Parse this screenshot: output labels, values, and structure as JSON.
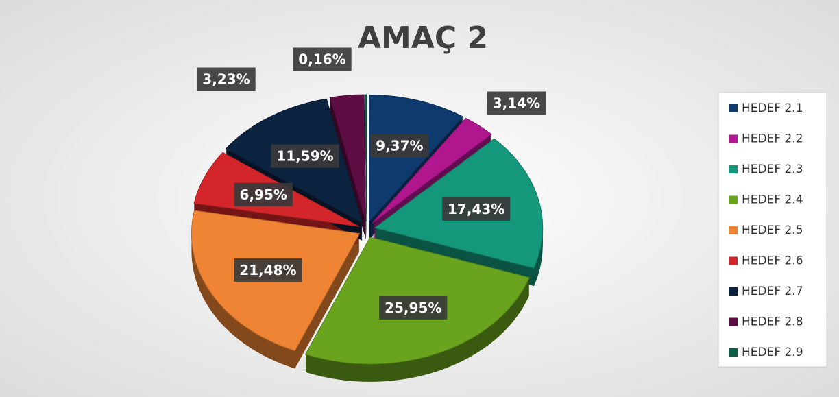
{
  "chart_data": {
    "type": "pie",
    "title": "AMAÇ 2",
    "categories": [
      "HEDEF 2.1",
      "HEDEF 2.2",
      "HEDEF 2.3",
      "HEDEF 2.4",
      "HEDEF 2.5",
      "HEDEF 2.6",
      "HEDEF 2.7",
      "HEDEF 2.8",
      "HEDEF 2.9"
    ],
    "values": [
      9.37,
      3.14,
      17.43,
      25.95,
      21.48,
      6.95,
      11.59,
      3.23,
      0.16
    ],
    "value_labels": [
      "9,37%",
      "3,14%",
      "17,43%",
      "25,95%",
      "21,48%",
      "6,95%",
      "11,59%",
      "3,23%",
      "0,16%"
    ],
    "colors": [
      "#0e3a6e",
      "#b0178f",
      "#14977a",
      "#6aa41f",
      "#ef8434",
      "#d3262a",
      "#0c2340",
      "#5e0d44",
      "#0e5c4a"
    ],
    "legend": "right"
  }
}
